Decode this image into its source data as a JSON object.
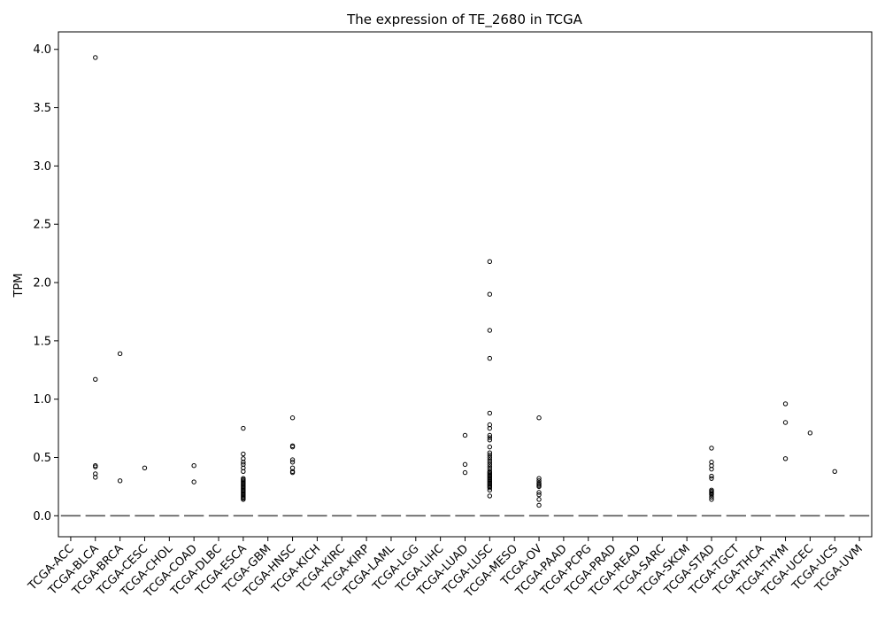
{
  "chart_data": {
    "type": "box",
    "title": "The expression of TE_2680 in TCGA",
    "xlabel": "",
    "ylabel": "TPM",
    "ylim": [
      -0.18,
      4.15
    ],
    "yticks": [
      "0.0",
      "0.5",
      "1.0",
      "1.5",
      "2.0",
      "2.5",
      "3.0",
      "3.5",
      "4.0"
    ],
    "grid": false,
    "legend": "none",
    "colors": {
      "axis": "#000000",
      "median": "#555555",
      "outlier_edge": "#000000"
    },
    "categories": [
      "TCGA-ACC",
      "TCGA-BLCA",
      "TCGA-BRCA",
      "TCGA-CESC",
      "TCGA-CHOL",
      "TCGA-COAD",
      "TCGA-DLBC",
      "TCGA-ESCA",
      "TCGA-GBM",
      "TCGA-HNSC",
      "TCGA-KICH",
      "TCGA-KIRC",
      "TCGA-KIRP",
      "TCGA-LAML",
      "TCGA-LGG",
      "TCGA-LIHC",
      "TCGA-LUAD",
      "TCGA-LUSC",
      "TCGA-MESO",
      "TCGA-OV",
      "TCGA-PAAD",
      "TCGA-PCPG",
      "TCGA-PRAD",
      "TCGA-READ",
      "TCGA-SARC",
      "TCGA-SKCM",
      "TCGA-STAD",
      "TCGA-TGCT",
      "TCGA-THCA",
      "TCGA-THYM",
      "TCGA-UCEC",
      "TCGA-UCS",
      "TCGA-UVM"
    ],
    "medians": [
      0,
      0,
      0,
      0,
      0,
      0,
      0,
      0,
      0,
      0,
      0,
      0,
      0,
      0,
      0,
      0,
      0,
      0,
      0,
      0,
      0,
      0,
      0,
      0,
      0,
      0,
      0,
      0,
      0,
      0,
      0,
      0,
      0
    ],
    "outliers": [
      [],
      [
        3.93,
        1.17,
        0.43,
        0.42,
        0.36,
        0.33
      ],
      [
        1.39,
        0.3
      ],
      [
        0.41
      ],
      [],
      [
        0.43,
        0.29
      ],
      [],
      [
        0.75,
        0.53,
        0.49,
        0.46,
        0.44,
        0.41,
        0.38,
        0.32,
        0.31,
        0.3,
        0.29,
        0.28,
        0.27,
        0.26,
        0.25,
        0.24,
        0.23,
        0.22,
        0.21,
        0.2,
        0.19,
        0.18,
        0.17,
        0.16,
        0.15,
        0.14
      ],
      [],
      [
        0.84,
        0.6,
        0.59,
        0.48,
        0.46,
        0.41,
        0.38,
        0.37
      ],
      [],
      [],
      [],
      [],
      [],
      [],
      [
        0.69,
        0.44,
        0.37
      ],
      [
        2.18,
        1.9,
        1.59,
        1.35,
        0.88,
        0.78,
        0.75,
        0.69,
        0.67,
        0.65,
        0.59,
        0.54,
        0.52,
        0.5,
        0.48,
        0.46,
        0.44,
        0.42,
        0.4,
        0.38,
        0.37,
        0.36,
        0.35,
        0.34,
        0.33,
        0.32,
        0.31,
        0.3,
        0.29,
        0.28,
        0.27,
        0.26,
        0.25,
        0.24,
        0.22,
        0.17
      ],
      [],
      [
        0.84,
        0.32,
        0.3,
        0.28,
        0.27,
        0.26,
        0.25,
        0.2,
        0.18,
        0.14,
        0.09
      ],
      [],
      [],
      [],
      [],
      [],
      [],
      [
        0.58,
        0.46,
        0.43,
        0.4,
        0.34,
        0.32,
        0.22,
        0.21,
        0.2,
        0.19,
        0.18,
        0.16,
        0.14
      ],
      [],
      [],
      [
        0.96,
        0.8,
        0.49
      ],
      [
        0.71
      ],
      [
        0.38
      ],
      []
    ]
  }
}
